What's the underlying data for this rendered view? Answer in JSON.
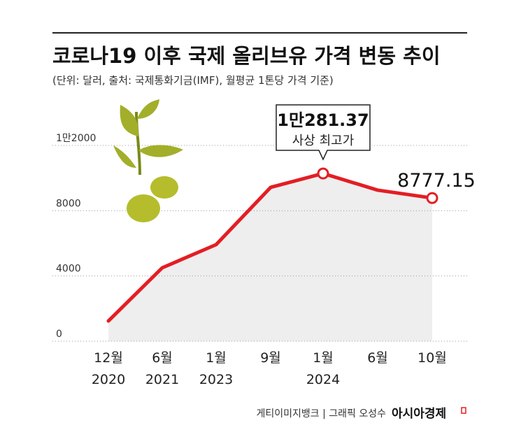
{
  "chart_data": {
    "type": "line",
    "title": "코로나19 이후 국제 올리브유 가격 변동 추이",
    "subtitle": "(단위: 달러, 출처: 국제통화기금(IMF), 월평균 1톤당 가격 기준)",
    "categories": [
      [
        "12월",
        "2020"
      ],
      [
        "6월",
        "2021"
      ],
      [
        "1월",
        "2023"
      ],
      [
        "9월"
      ],
      [
        "1월",
        "2024"
      ],
      [
        "6월"
      ],
      [
        "10월"
      ]
    ],
    "values": [
      1240,
      4500,
      5920,
      9430,
      10281.37,
      9260,
      8777.15
    ],
    "value_labels": [
      null,
      null,
      null,
      null,
      "1만281.37",
      null,
      "8777.15"
    ],
    "annotation": "사상 최고가",
    "color": "#e31e24",
    "ylim": [
      0,
      12000
    ],
    "yticks": [
      0,
      4000,
      8000,
      {
        "value": 12000,
        "label": "1만2000"
      }
    ],
    "grid": true,
    "source": "게티이미지뱅크 | 그래픽 오성수",
    "publisher": "아시아경제"
  }
}
